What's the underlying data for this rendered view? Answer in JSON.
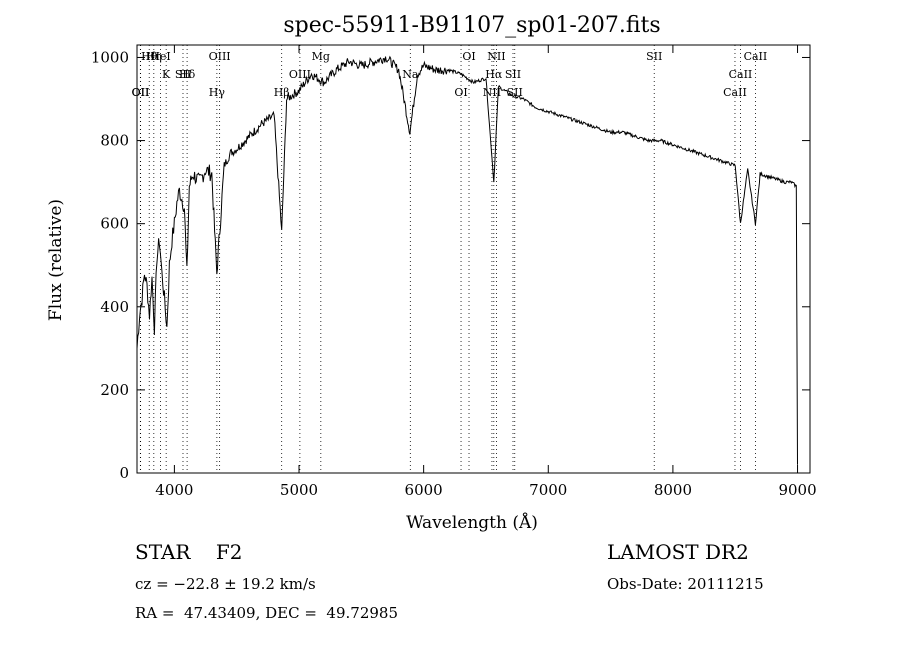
{
  "chart_data": {
    "type": "line",
    "title": "spec-55911-B91107_sp01-207.fits",
    "xlabel": "Wavelength (Å)",
    "ylabel": "Flux (relative)",
    "xlim": [
      3700,
      9100
    ],
    "ylim": [
      0,
      1030
    ],
    "xticks": [
      4000,
      5000,
      6000,
      7000,
      8000,
      9000
    ],
    "yticks": [
      0,
      200,
      400,
      600,
      800,
      1000
    ],
    "grid": false,
    "series": [
      {
        "x": [
          3700,
          3720,
          3740,
          3760,
          3780,
          3800,
          3820,
          3840,
          3860,
          3880,
          3900,
          3920,
          3940,
          3960,
          3980,
          4000,
          4020,
          4040,
          4060,
          4080,
          4100,
          4120,
          4150,
          4200,
          4250,
          4300,
          4340,
          4400,
          4450,
          4500,
          4600,
          4700,
          4800,
          4861,
          4900,
          5000,
          5100,
          5200,
          5300,
          5400,
          5500,
          5600,
          5700,
          5800,
          5890,
          5950,
          6000,
          6100,
          6200,
          6300,
          6400,
          6500,
          6563,
          6600,
          6700,
          6800,
          6900,
          7000,
          7100,
          7200,
          7300,
          7400,
          7500,
          7600,
          7700,
          7800,
          7900,
          8000,
          8100,
          8200,
          8300,
          8400,
          8500,
          8542,
          8600,
          8662,
          8700,
          8800,
          8900,
          8950,
          8990,
          9000
        ],
        "y": [
          300,
          380,
          420,
          480,
          450,
          380,
          470,
          350,
          520,
          560,
          480,
          420,
          350,
          500,
          560,
          600,
          650,
          680,
          660,
          640,
          480,
          690,
          720,
          700,
          730,
          720,
          480,
          740,
          770,
          780,
          810,
          840,
          860,
          580,
          900,
          920,
          960,
          940,
          970,
          990,
          980,
          990,
          1000,
          970,
          820,
          960,
          980,
          970,
          970,
          960,
          940,
          950,
          700,
          930,
          910,
          900,
          880,
          870,
          860,
          850,
          840,
          830,
          820,
          820,
          810,
          800,
          800,
          790,
          780,
          770,
          760,
          750,
          740,
          600,
          730,
          600,
          720,
          710,
          700,
          700,
          690,
          20
        ]
      }
    ],
    "line_marks": [
      {
        "name": "Hθ",
        "x": 3798
      },
      {
        "name": "K",
        "x": 3934
      },
      {
        "name": "OII",
        "x": 3727
      },
      {
        "name": "HeI",
        "x": 3889
      },
      {
        "name": "Hδ",
        "x": 4102
      },
      {
        "name": "OII",
        "x": 3729
      },
      {
        "name": "Hη",
        "x": 3835
      },
      {
        "name": "SII",
        "x": 4069
      },
      {
        "name": "Hγ",
        "x": 4341
      },
      {
        "name": "OIII",
        "x": 4363
      },
      {
        "name": "OIII",
        "x": 5007
      },
      {
        "name": "Hβ",
        "x": 4861
      },
      {
        "name": "Mg",
        "x": 5175
      },
      {
        "name": "Na",
        "x": 5893
      },
      {
        "name": "OI",
        "x": 6300
      },
      {
        "name": "OI",
        "x": 6364
      },
      {
        "name": "Hα",
        "x": 6563
      },
      {
        "name": "NII",
        "x": 6548
      },
      {
        "name": "NII",
        "x": 6584
      },
      {
        "name": "SII",
        "x": 6717
      },
      {
        "name": "SII",
        "x": 6731
      },
      {
        "name": "SII",
        "x": 7850
      },
      {
        "name": "CaII",
        "x": 8542
      },
      {
        "name": "CaII",
        "x": 8498
      },
      {
        "name": "CaII",
        "x": 8662
      }
    ]
  },
  "info": {
    "classification": "STAR    F2",
    "survey": "LAMOST DR2",
    "cz": "cz = −22.8 ± 19.2 km/s",
    "obs_date": "Obs-Date: 20111215",
    "radec": "RA =  47.43409, DEC =  49.72985"
  }
}
